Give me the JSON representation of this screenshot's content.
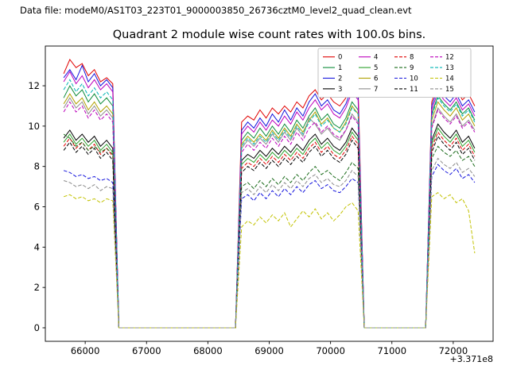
{
  "figure": {
    "data_file_label": "Data file: modeM0/AS1T03_223T01_9000003850_26736cztM0_level2_quad_clean.evt",
    "title": "Quadrant 2 module wise count rates with 100.0s bins.",
    "x_offset_label": "+3.371e8",
    "background": "#ffffff"
  },
  "chart_data": {
    "type": "line",
    "title": "Quadrant 2 module wise count rates with 100.0s bins.",
    "xlabel": "",
    "ylabel": "",
    "grid": false,
    "legend_position": "upper right",
    "legend_columns": 4,
    "x_offset": 337100000,
    "xlim": [
      65350,
      72650
    ],
    "ylim": [
      -0.67,
      13.97
    ],
    "xticks": [
      66000,
      67000,
      68000,
      69000,
      70000,
      71000,
      72000
    ],
    "yticks": [
      0,
      2,
      4,
      6,
      8,
      10,
      12
    ],
    "x": [
      65650,
      65750,
      65850,
      65950,
      66050,
      66150,
      66250,
      66350,
      66450,
      66550,
      66650,
      66750,
      66850,
      66950,
      67050,
      67150,
      67250,
      67350,
      67450,
      67550,
      67650,
      67750,
      67850,
      67950,
      68050,
      68150,
      68250,
      68350,
      68450,
      68550,
      68650,
      68750,
      68850,
      68950,
      69050,
      69150,
      69250,
      69350,
      69450,
      69550,
      69650,
      69750,
      69850,
      69950,
      70050,
      70150,
      70250,
      70350,
      70450,
      70550,
      70650,
      70750,
      70850,
      70950,
      71050,
      71150,
      71250,
      71350,
      71450,
      71550,
      71650,
      71750,
      71850,
      71950,
      72050,
      72150,
      72250,
      72350
    ],
    "series": [
      {
        "name": "0",
        "color": "#e00000",
        "dash": false,
        "values": [
          12.6,
          13.3,
          12.9,
          13.1,
          12.5,
          12.8,
          12.2,
          12.4,
          12.1,
          0,
          0,
          0,
          0,
          0,
          0,
          0,
          0,
          0,
          0,
          0,
          0,
          0,
          0,
          0,
          0,
          0,
          0,
          0,
          0,
          10.2,
          10.5,
          10.3,
          10.8,
          10.4,
          10.9,
          10.6,
          11.0,
          10.7,
          11.2,
          10.9,
          11.5,
          11.8,
          11.3,
          11.6,
          11.2,
          11.0,
          11.4,
          12.2,
          11.9,
          0,
          0,
          0,
          0,
          0,
          0,
          0,
          0,
          0,
          0,
          0,
          11.2,
          12.1,
          11.8,
          11.5,
          11.9,
          11.3,
          11.6,
          11.0
        ]
      },
      {
        "name": "1",
        "color": "#0e8c3a",
        "dash": false,
        "values": [
          11.4,
          12.0,
          11.5,
          11.8,
          11.2,
          11.6,
          11.1,
          11.4,
          11.0,
          0,
          0,
          0,
          0,
          0,
          0,
          0,
          0,
          0,
          0,
          0,
          0,
          0,
          0,
          0,
          0,
          0,
          0,
          0,
          0,
          9.3,
          9.7,
          9.4,
          9.9,
          9.5,
          10.0,
          9.6,
          10.1,
          9.7,
          10.3,
          9.9,
          10.5,
          10.9,
          10.3,
          10.6,
          10.1,
          9.9,
          10.4,
          11.2,
          10.8,
          0,
          0,
          0,
          0,
          0,
          0,
          0,
          0,
          0,
          0,
          0,
          10.6,
          11.5,
          11.1,
          10.8,
          11.2,
          10.6,
          10.9,
          10.3
        ]
      },
      {
        "name": "2",
        "color": "#1414dc",
        "dash": false,
        "values": [
          12.4,
          12.8,
          12.3,
          13.0,
          12.2,
          12.6,
          12.0,
          12.3,
          11.9,
          0,
          0,
          0,
          0,
          0,
          0,
          0,
          0,
          0,
          0,
          0,
          0,
          0,
          0,
          0,
          0,
          0,
          0,
          0,
          0,
          9.8,
          10.2,
          9.9,
          10.4,
          10.0,
          10.6,
          10.2,
          10.8,
          10.3,
          10.9,
          10.5,
          11.2,
          11.6,
          11.0,
          11.3,
          10.8,
          10.6,
          11.1,
          11.9,
          11.5,
          0,
          0,
          0,
          0,
          0,
          0,
          0,
          0,
          0,
          0,
          0,
          11.0,
          11.9,
          11.5,
          11.2,
          11.6,
          11.0,
          11.3,
          10.7
        ]
      },
      {
        "name": "3",
        "color": "#000000",
        "dash": false,
        "values": [
          9.4,
          9.8,
          9.3,
          9.6,
          9.2,
          9.5,
          9.0,
          9.3,
          8.9,
          0,
          0,
          0,
          0,
          0,
          0,
          0,
          0,
          0,
          0,
          0,
          0,
          0,
          0,
          0,
          0,
          0,
          0,
          0,
          0,
          8.3,
          8.6,
          8.4,
          8.8,
          8.5,
          8.9,
          8.6,
          9.0,
          8.7,
          9.1,
          8.8,
          9.3,
          9.6,
          9.1,
          9.4,
          9.0,
          8.8,
          9.2,
          9.9,
          9.5,
          0,
          0,
          0,
          0,
          0,
          0,
          0,
          0,
          0,
          0,
          0,
          9.3,
          10.1,
          9.7,
          9.4,
          9.8,
          9.2,
          9.5,
          8.9
        ]
      },
      {
        "name": "4",
        "color": "#bc00bc",
        "dash": false,
        "values": [
          12.2,
          12.7,
          12.1,
          12.5,
          11.9,
          12.3,
          11.8,
          12.1,
          11.7,
          0,
          0,
          0,
          0,
          0,
          0,
          0,
          0,
          0,
          0,
          0,
          0,
          0,
          0,
          0,
          0,
          0,
          0,
          0,
          0,
          9.6,
          10.0,
          9.7,
          10.2,
          9.8,
          10.3,
          10.0,
          10.5,
          10.1,
          10.7,
          10.3,
          10.9,
          11.3,
          10.8,
          11.1,
          10.6,
          10.4,
          10.9,
          11.7,
          11.3,
          0,
          0,
          0,
          0,
          0,
          0,
          0,
          0,
          0,
          0,
          0,
          10.8,
          11.7,
          11.3,
          11.0,
          11.4,
          10.8,
          11.1,
          10.5
        ]
      },
      {
        "name": "5",
        "color": "#2ca02c",
        "dash": false,
        "values": [
          9.2,
          9.6,
          9.1,
          9.4,
          9.0,
          9.3,
          8.8,
          9.1,
          8.7,
          0,
          0,
          0,
          0,
          0,
          0,
          0,
          0,
          0,
          0,
          0,
          0,
          0,
          0,
          0,
          0,
          0,
          0,
          0,
          0,
          8.1,
          8.4,
          8.2,
          8.6,
          8.3,
          8.7,
          8.4,
          8.8,
          8.5,
          8.9,
          8.6,
          9.1,
          9.4,
          8.9,
          9.2,
          8.8,
          8.6,
          9.0,
          9.7,
          9.3,
          0,
          0,
          0,
          0,
          0,
          0,
          0,
          0,
          0,
          0,
          0,
          9.1,
          9.9,
          9.5,
          9.2,
          9.6,
          9.0,
          9.3,
          8.7
        ]
      },
      {
        "name": "6",
        "color": "#b0a000",
        "dash": false,
        "values": [
          11.1,
          11.6,
          11.1,
          11.4,
          10.8,
          11.2,
          10.7,
          11.0,
          10.6,
          0,
          0,
          0,
          0,
          0,
          0,
          0,
          0,
          0,
          0,
          0,
          0,
          0,
          0,
          0,
          0,
          0,
          0,
          0,
          0,
          9.1,
          9.5,
          9.2,
          9.6,
          9.3,
          9.8,
          9.4,
          9.9,
          9.5,
          10.1,
          9.7,
          10.3,
          10.7,
          10.1,
          10.4,
          9.9,
          9.7,
          10.2,
          11.0,
          10.6,
          0,
          0,
          0,
          0,
          0,
          0,
          0,
          0,
          0,
          0,
          0,
          10.3,
          11.2,
          10.8,
          10.5,
          10.9,
          10.3,
          10.6,
          10.0
        ]
      },
      {
        "name": "7",
        "color": "#8c8c8c",
        "dash": false,
        "values": [
          10.9,
          11.4,
          10.9,
          11.2,
          10.6,
          11.0,
          10.5,
          10.8,
          10.4,
          0,
          0,
          0,
          0,
          0,
          0,
          0,
          0,
          0,
          0,
          0,
          0,
          0,
          0,
          0,
          0,
          0,
          0,
          0,
          0,
          8.9,
          9.3,
          9.0,
          9.4,
          9.1,
          9.6,
          9.2,
          9.7,
          9.3,
          9.9,
          9.5,
          10.4,
          10.1,
          9.6,
          9.9,
          9.5,
          9.3,
          9.8,
          10.6,
          10.2,
          0,
          0,
          0,
          0,
          0,
          0,
          0,
          0,
          0,
          0,
          0,
          10.0,
          10.9,
          10.5,
          10.2,
          10.6,
          10.0,
          10.3,
          9.8
        ]
      },
      {
        "name": "8",
        "color": "#e00000",
        "dash": true,
        "values": [
          9.0,
          9.4,
          8.9,
          9.2,
          8.8,
          9.1,
          8.6,
          8.9,
          8.5,
          0,
          0,
          0,
          0,
          0,
          0,
          0,
          0,
          0,
          0,
          0,
          0,
          0,
          0,
          0,
          0,
          0,
          0,
          0,
          0,
          7.9,
          8.2,
          8.0,
          8.4,
          8.1,
          8.5,
          8.2,
          8.6,
          8.3,
          8.7,
          8.4,
          8.9,
          9.2,
          8.7,
          9.0,
          8.6,
          8.4,
          8.8,
          9.5,
          9.1,
          0,
          0,
          0,
          0,
          0,
          0,
          0,
          0,
          0,
          0,
          0,
          8.9,
          9.7,
          9.3,
          9.0,
          9.4,
          8.8,
          9.1,
          8.5
        ]
      },
      {
        "name": "9",
        "color": "#1a6b1a",
        "dash": true,
        "values": [
          9.6,
          9.4,
          9.0,
          9.2,
          8.8,
          9.0,
          8.7,
          8.9,
          8.6,
          0,
          0,
          0,
          0,
          0,
          0,
          0,
          0,
          0,
          0,
          0,
          0,
          0,
          0,
          0,
          0,
          0,
          0,
          0,
          0,
          7.0,
          7.2,
          6.9,
          7.3,
          7.0,
          7.4,
          7.1,
          7.5,
          7.2,
          7.6,
          7.3,
          7.7,
          8.0,
          7.6,
          7.8,
          7.5,
          7.3,
          7.7,
          8.2,
          7.9,
          0,
          0,
          0,
          0,
          0,
          0,
          0,
          0,
          0,
          0,
          0,
          8.4,
          9.0,
          8.7,
          8.5,
          8.8,
          8.3,
          8.5,
          8.0
        ]
      },
      {
        "name": "10",
        "color": "#1414dc",
        "dash": true,
        "values": [
          7.8,
          7.7,
          7.5,
          7.6,
          7.4,
          7.5,
          7.3,
          7.4,
          7.2,
          0,
          0,
          0,
          0,
          0,
          0,
          0,
          0,
          0,
          0,
          0,
          0,
          0,
          0,
          0,
          0,
          0,
          0,
          0,
          0,
          6.4,
          6.6,
          6.3,
          6.7,
          6.4,
          6.8,
          6.5,
          6.9,
          6.6,
          7.0,
          6.7,
          7.1,
          7.3,
          6.9,
          7.1,
          6.8,
          6.7,
          7.0,
          7.4,
          7.2,
          0,
          0,
          0,
          0,
          0,
          0,
          0,
          0,
          0,
          0,
          0,
          7.5,
          8.1,
          7.8,
          7.6,
          7.9,
          7.4,
          7.6,
          7.2
        ]
      },
      {
        "name": "11",
        "color": "#000000",
        "dash": true,
        "values": [
          8.8,
          9.2,
          8.7,
          9.0,
          8.6,
          8.9,
          8.4,
          8.7,
          8.3,
          0,
          0,
          0,
          0,
          0,
          0,
          0,
          0,
          0,
          0,
          0,
          0,
          0,
          0,
          0,
          0,
          0,
          0,
          0,
          0,
          7.7,
          8.0,
          7.8,
          8.2,
          7.9,
          8.3,
          8.0,
          8.4,
          8.1,
          8.5,
          8.2,
          8.7,
          9.0,
          8.5,
          8.8,
          8.4,
          8.2,
          8.6,
          9.3,
          8.9,
          0,
          0,
          0,
          0,
          0,
          0,
          0,
          0,
          0,
          0,
          0,
          8.7,
          9.5,
          9.1,
          8.8,
          9.2,
          8.6,
          8.9,
          8.3
        ]
      },
      {
        "name": "12",
        "color": "#bc00bc",
        "dash": true,
        "values": [
          10.7,
          11.2,
          10.7,
          11.0,
          10.4,
          10.8,
          10.3,
          10.6,
          10.2,
          0,
          0,
          0,
          0,
          0,
          0,
          0,
          0,
          0,
          0,
          0,
          0,
          0,
          0,
          0,
          0,
          0,
          0,
          0,
          0,
          8.7,
          9.1,
          8.8,
          9.2,
          8.9,
          9.4,
          9.0,
          9.5,
          9.1,
          9.7,
          9.3,
          9.9,
          10.2,
          9.7,
          10.0,
          9.6,
          9.4,
          9.8,
          10.5,
          10.1,
          0,
          0,
          0,
          0,
          0,
          0,
          0,
          0,
          0,
          0,
          0,
          9.9,
          10.8,
          10.4,
          10.1,
          10.5,
          9.9,
          10.2,
          9.7
        ]
      },
      {
        "name": "13",
        "color": "#00b4b4",
        "dash": true,
        "values": [
          11.8,
          12.3,
          11.7,
          12.1,
          11.5,
          11.9,
          11.4,
          11.7,
          11.3,
          0,
          0,
          0,
          0,
          0,
          0,
          0,
          0,
          0,
          0,
          0,
          0,
          0,
          0,
          0,
          0,
          0,
          0,
          0,
          0,
          9.0,
          9.4,
          9.1,
          9.5,
          9.2,
          9.7,
          9.3,
          9.8,
          9.4,
          10.0,
          9.6,
          10.2,
          10.6,
          10.0,
          10.3,
          9.9,
          9.7,
          10.1,
          10.9,
          10.6,
          0,
          0,
          0,
          0,
          0,
          0,
          0,
          0,
          0,
          0,
          0,
          10.5,
          11.4,
          11.0,
          10.7,
          11.1,
          10.5,
          10.8,
          10.2
        ]
      },
      {
        "name": "14",
        "color": "#c2c200",
        "dash": true,
        "values": [
          6.5,
          6.6,
          6.4,
          6.5,
          6.3,
          6.4,
          6.2,
          6.4,
          6.3,
          0,
          0,
          0,
          0,
          0,
          0,
          0,
          0,
          0,
          0,
          0,
          0,
          0,
          0,
          0,
          0,
          0,
          0,
          0,
          0,
          5.0,
          5.3,
          5.1,
          5.5,
          5.2,
          5.6,
          5.3,
          5.7,
          5.0,
          5.4,
          5.8,
          5.5,
          5.9,
          5.4,
          5.7,
          5.3,
          5.6,
          6.0,
          6.2,
          5.8,
          0,
          0,
          0,
          0,
          0,
          0,
          0,
          0,
          0,
          0,
          0,
          6.5,
          6.7,
          6.4,
          6.6,
          6.2,
          6.4,
          5.8,
          3.7
        ]
      },
      {
        "name": "15",
        "color": "#8c8c8c",
        "dash": true,
        "values": [
          7.3,
          7.2,
          7.0,
          7.1,
          6.9,
          7.1,
          6.8,
          7.0,
          6.9,
          0,
          0,
          0,
          0,
          0,
          0,
          0,
          0,
          0,
          0,
          0,
          0,
          0,
          0,
          0,
          0,
          0,
          0,
          0,
          0,
          6.7,
          6.9,
          6.6,
          7.0,
          6.7,
          7.1,
          6.8,
          7.2,
          6.9,
          7.3,
          7.0,
          7.4,
          7.6,
          7.2,
          7.4,
          7.1,
          7.0,
          7.3,
          7.8,
          7.5,
          0,
          0,
          0,
          0,
          0,
          0,
          0,
          0,
          0,
          0,
          0,
          7.8,
          8.4,
          8.1,
          7.9,
          8.2,
          7.7,
          7.9,
          7.5
        ]
      }
    ]
  }
}
